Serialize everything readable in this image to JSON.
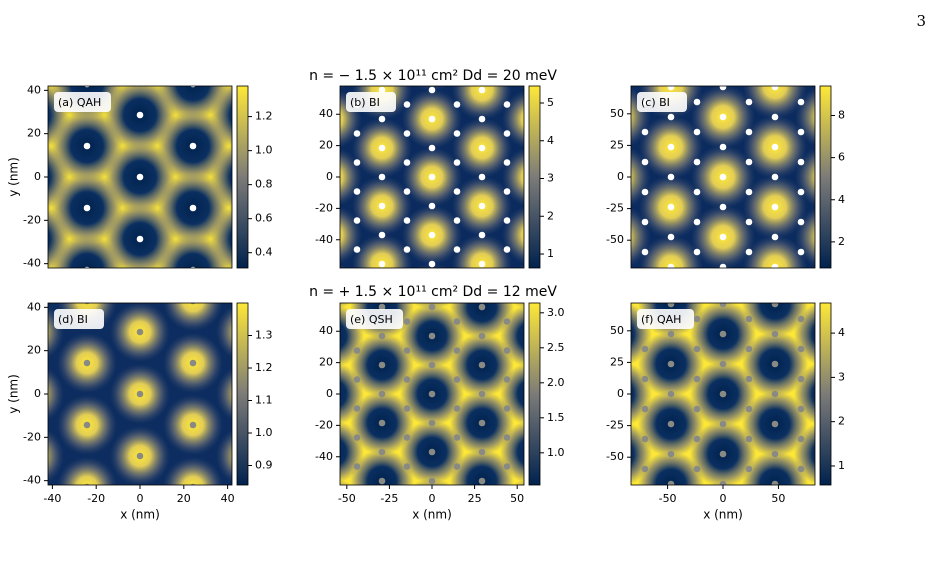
{
  "page_number": "3",
  "row_titles": [
    "n = − 1.5 × 10¹¹ cm² Dd = 20 meV",
    "n = + 1.5 × 10¹¹ cm² Dd = 12 meV"
  ],
  "chart_data": [
    {
      "type": "heatmap",
      "label": "(a) QAH",
      "ylabel": "y (nm)",
      "xlim": [
        -42,
        42
      ],
      "ylim": [
        -42,
        42
      ],
      "yticks": [
        -40,
        -20,
        0,
        20,
        40
      ],
      "clim": [
        0.31,
        1.38
      ],
      "cticks": [
        0.4,
        0.6,
        0.8,
        {
          "value": 1,
          "label": "1.0"
        },
        1.2
      ],
      "colormap": [
        "#00224e",
        "#7c7b78",
        "#fee838"
      ]
    },
    {
      "type": "heatmap",
      "label": "(b) BI",
      "xlim": [
        -54,
        54
      ],
      "ylim": [
        -58,
        58
      ],
      "yticks": [
        -40,
        -20,
        0,
        20,
        40
      ],
      "clim": [
        0.63,
        5.45
      ],
      "cticks": [
        1,
        2,
        3,
        4,
        5
      ],
      "colormap": [
        "#00224e",
        "#7c7b78",
        "#fee838"
      ]
    },
    {
      "type": "heatmap",
      "label": "(c) BI",
      "xlim": [
        -83,
        83
      ],
      "ylim": [
        -72,
        72
      ],
      "yticks": [
        -50,
        -25,
        0,
        25,
        50
      ],
      "clim": [
        0.76,
        9.4
      ],
      "cticks": [
        2,
        4,
        6,
        8
      ],
      "colormap": [
        "#00224e",
        "#7c7b78",
        "#fee838"
      ]
    },
    {
      "type": "heatmap",
      "label": "(d) BI",
      "xlabel": "x (nm)",
      "ylabel": "y (nm)",
      "xlim": [
        -42,
        42
      ],
      "ylim": [
        -42,
        42
      ],
      "xticks": [
        -40,
        -20,
        0,
        20,
        40
      ],
      "yticks": [
        -40,
        -20,
        0,
        20,
        40
      ],
      "clim": [
        0.84,
        1.4
      ],
      "cticks": [
        0.9,
        {
          "value": 1,
          "label": "1.0"
        },
        1.1,
        1.2,
        1.3
      ],
      "colormap": [
        "#00224e",
        "#7c7b78",
        "#fee838"
      ]
    },
    {
      "type": "heatmap",
      "label": "(e) QSH",
      "xlabel": "x (nm)",
      "xlim": [
        -54,
        54
      ],
      "ylim": [
        -58,
        58
      ],
      "xticks": [
        -50,
        -25,
        0,
        25,
        50
      ],
      "yticks": [
        -40,
        -20,
        0,
        20,
        40
      ],
      "clim": [
        0.54,
        3.14
      ],
      "cticks": [
        {
          "value": 1,
          "label": "1.0"
        },
        1.5,
        {
          "value": 2,
          "label": "2.0"
        },
        2.5,
        {
          "value": 3,
          "label": "3.0"
        }
      ],
      "colormap": [
        "#00224e",
        "#7c7b78",
        "#fee838"
      ]
    },
    {
      "type": "heatmap",
      "label": "(f) QAH",
      "xlabel": "x (nm)",
      "xlim": [
        -83,
        83
      ],
      "ylim": [
        -72,
        72
      ],
      "xticks": [
        -50,
        0,
        50
      ],
      "yticks": [
        -50,
        -25,
        0,
        25,
        50
      ],
      "clim": [
        0.57,
        4.68
      ],
      "cticks": [
        1,
        2,
        3,
        4
      ],
      "colormap": [
        "#00224e",
        "#7c7b78",
        "#fee838"
      ]
    }
  ]
}
